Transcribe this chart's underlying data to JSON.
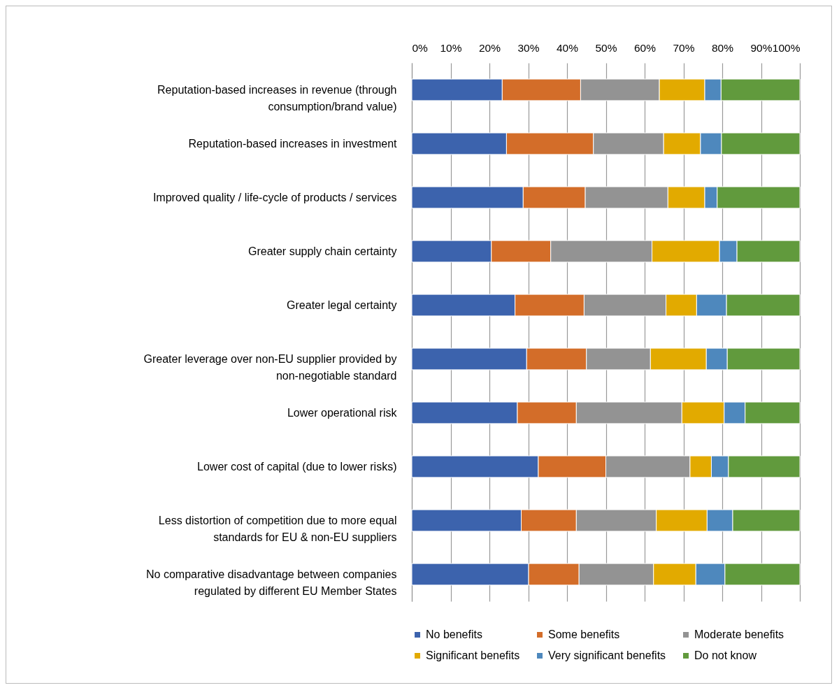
{
  "chart_data": {
    "type": "bar",
    "orientation": "horizontal",
    "stacked": true,
    "categories": [
      "Reputation-based increases in revenue (through consumption/brand value)",
      "Reputation-based increases in investment",
      "Improved quality / life-cycle of products / services",
      "Greater supply chain certainty",
      "Greater legal certainty",
      "Greater leverage over non-EU supplier provided by non-negotiable standard",
      "Lower operational risk",
      "Lower cost of capital (due to lower risks)",
      "Less distortion of competition due to more equal standards for EU & non-EU suppliers",
      "No comparative disadvantage between companies regulated by different EU Member States"
    ],
    "series": [
      {
        "name": "No benefits",
        "color": "#3c63ad",
        "values": [
          23.3,
          24.4,
          28.7,
          20.5,
          26.6,
          29.6,
          27.2,
          32.6,
          28.2,
          30.1
        ]
      },
      {
        "name": "Some benefits",
        "color": "#d36d29",
        "values": [
          20.2,
          22.4,
          16.0,
          15.3,
          17.8,
          15.4,
          15.2,
          17.4,
          14.2,
          13.0
        ]
      },
      {
        "name": "Moderate benefits",
        "color": "#939393",
        "values": [
          20.3,
          18.1,
          21.3,
          26.1,
          21.1,
          16.5,
          27.2,
          21.7,
          20.6,
          19.2
        ]
      },
      {
        "name": "Significant benefits",
        "color": "#e2aa00",
        "values": [
          11.7,
          9.5,
          9.5,
          17.4,
          7.9,
          14.4,
          10.9,
          5.5,
          13.1,
          10.9
        ]
      },
      {
        "name": "Very significant benefits",
        "color": "#4e88bd",
        "values": [
          4.2,
          5.4,
          3.2,
          4.5,
          7.7,
          5.4,
          5.4,
          4.4,
          6.6,
          7.5
        ]
      },
      {
        "name": "Do not know",
        "color": "#619a3d",
        "values": [
          20.3,
          20.2,
          21.3,
          16.2,
          18.9,
          18.7,
          14.1,
          18.4,
          17.3,
          19.3
        ]
      }
    ],
    "xlim": [
      0,
      100
    ],
    "xticks": [
      {
        "value": 0,
        "label": "0%"
      },
      {
        "value": 10,
        "label": "10%"
      },
      {
        "value": 20,
        "label": "20%"
      },
      {
        "value": 30,
        "label": "30%"
      },
      {
        "value": 40,
        "label": "40%"
      },
      {
        "value": 50,
        "label": "50%"
      },
      {
        "value": 60,
        "label": "60%"
      },
      {
        "value": 70,
        "label": "70%"
      },
      {
        "value": 80,
        "label": "80%"
      },
      {
        "value": 90,
        "label": "90%"
      },
      {
        "value": 100,
        "label": "100%"
      }
    ],
    "grid": "x",
    "legend": "bottom"
  }
}
